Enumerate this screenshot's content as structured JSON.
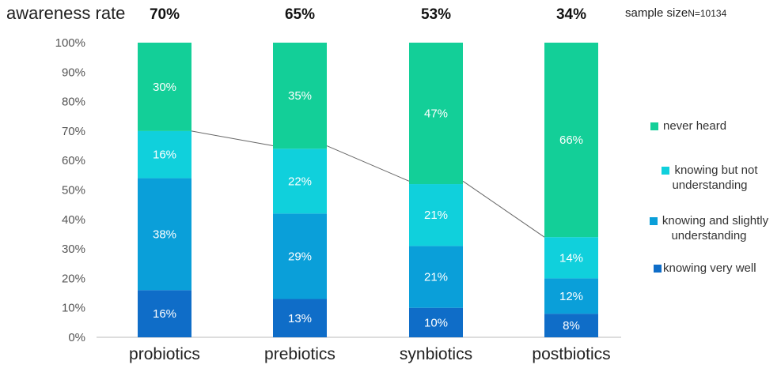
{
  "chart_data": {
    "type": "bar",
    "stacked": true,
    "title": "awareness rate",
    "sample_size_label": "sample size",
    "sample_size_value": "N=10134",
    "categories": [
      "probiotics",
      "prebiotics",
      "synbiotics",
      "postbiotics"
    ],
    "awareness_rate": [
      "70%",
      "65%",
      "53%",
      "34%"
    ],
    "awareness_values": [
      70,
      65,
      53,
      34
    ],
    "ylim": [
      0,
      100
    ],
    "yticks": [
      "0%",
      "10%",
      "20%",
      "30%",
      "40%",
      "50%",
      "60%",
      "70%",
      "80%",
      "90%",
      "100%"
    ],
    "grid": false,
    "legend_position": "right",
    "series": [
      {
        "name": "knowing very well",
        "color": "#0f6dc8",
        "values": [
          16,
          13,
          10,
          8
        ],
        "labels": [
          "16%",
          "13%",
          "10%",
          "8%"
        ]
      },
      {
        "name": "knowing and slightly understanding",
        "color": "#0a9fd9",
        "values": [
          38,
          29,
          21,
          12
        ],
        "labels": [
          "38%",
          "29%",
          "21%",
          "12%"
        ]
      },
      {
        "name": "knowing but not understanding",
        "color": "#10d0dc",
        "values": [
          16,
          22,
          21,
          14
        ],
        "labels": [
          "16%",
          "22%",
          "21%",
          "14%"
        ]
      },
      {
        "name": "never heard",
        "color": "#13cf98",
        "values": [
          30,
          35,
          47,
          66
        ],
        "labels": [
          "30%",
          "35%",
          "47%",
          "66%"
        ]
      }
    ]
  }
}
